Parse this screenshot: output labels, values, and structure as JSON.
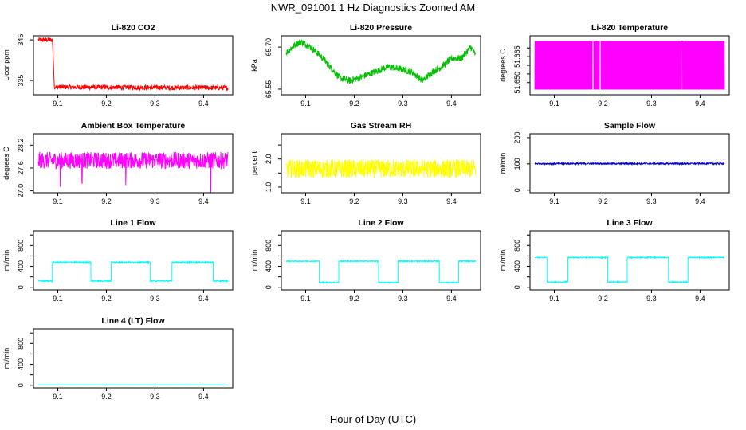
{
  "title": "NWR_091001  1 Hz Diagnostics Zoomed AM",
  "xlabel": "Hour of Day (UTC)",
  "chart_data": [
    {
      "type": "line",
      "title": "Li-820 CO2",
      "ylabel": "Licor ppm",
      "color": "#ff0000",
      "xlim": [
        9.05,
        9.46
      ],
      "ylim": [
        331.5,
        346.0
      ],
      "yticks": [
        335,
        345
      ],
      "ytick_labels": [
        "335",
        "345"
      ],
      "xticks": [
        9.1,
        9.2,
        9.3,
        9.4
      ],
      "xtick_labels": [
        "9.1",
        "9.2",
        "9.3",
        "9.4"
      ],
      "x_range": [
        9.06,
        9.45
      ],
      "segments": [
        {
          "x": [
            9.06,
            9.089
          ],
          "y": [
            345.0,
            345.0
          ],
          "noise": 0.6
        },
        {
          "x": [
            9.089,
            9.093
          ],
          "y": [
            345.0,
            333.6
          ],
          "noise": 0.2
        },
        {
          "x": [
            9.093,
            9.45
          ],
          "y": [
            333.4,
            333.2
          ],
          "noise": 0.6
        }
      ]
    },
    {
      "type": "line",
      "title": "Li-820 Pressure",
      "ylabel": "kPa",
      "color": "#00c000",
      "xlim": [
        9.05,
        9.46
      ],
      "ylim": [
        65.53,
        65.74
      ],
      "yticks": [
        65.55,
        65.7
      ],
      "ytick_labels": [
        "65.55",
        "65.70"
      ],
      "xticks": [
        9.1,
        9.2,
        9.3,
        9.4
      ],
      "xtick_labels": [
        "9.1",
        "9.2",
        "9.3",
        "9.4"
      ],
      "x_range": [
        9.06,
        9.45
      ],
      "anchors": {
        "x": [
          9.06,
          9.08,
          9.09,
          9.11,
          9.13,
          9.15,
          9.17,
          9.19,
          9.21,
          9.24,
          9.27,
          9.3,
          9.32,
          9.34,
          9.36,
          9.38,
          9.4,
          9.42,
          9.44,
          9.45
        ],
        "y": [
          65.68,
          65.71,
          65.72,
          65.7,
          65.67,
          65.63,
          65.59,
          65.58,
          65.59,
          65.61,
          65.63,
          65.62,
          65.61,
          65.58,
          65.61,
          65.63,
          65.66,
          65.66,
          65.7,
          65.67
        ]
      },
      "noise": 0.012
    },
    {
      "type": "line",
      "title": "Li-820 Temperature",
      "ylabel": "degrees C",
      "color": "#ff00ff",
      "xlim": [
        9.05,
        9.46
      ],
      "ylim": [
        51.643,
        51.677
      ],
      "yticks": [
        51.65,
        51.655,
        51.66,
        51.665,
        51.67
      ],
      "ytick_labels": [
        "51.650",
        "",
        "",
        "51.665",
        ""
      ],
      "xticks": [
        9.1,
        9.2,
        9.3,
        9.4
      ],
      "xtick_labels": [
        "9.1",
        "9.2",
        "9.3",
        "9.4"
      ],
      "x_range": [
        9.06,
        9.45
      ],
      "oscillating_between": [
        51.646,
        51.674
      ],
      "gaps": [
        [
          9.178,
          9.181
        ],
        [
          9.193,
          9.196
        ],
        [
          9.362,
          9.364
        ]
      ]
    },
    {
      "type": "line",
      "title": "Ambient Box Temperature",
      "ylabel": "degrees C",
      "color": "#ff00ff",
      "xlim": [
        9.05,
        9.46
      ],
      "ylim": [
        26.95,
        28.5
      ],
      "yticks": [
        27.0,
        27.6,
        28.2
      ],
      "ytick_labels": [
        "27.0",
        "27.6",
        "28.2"
      ],
      "xticks": [
        9.1,
        9.2,
        9.3,
        9.4
      ],
      "xtick_labels": [
        "9.1",
        "9.2",
        "9.3",
        "9.4"
      ],
      "x_range": [
        9.06,
        9.45
      ],
      "baseline": 27.8,
      "noise": 0.22,
      "spikes_low": [
        [
          9.105,
          27.1
        ],
        [
          9.15,
          27.2
        ],
        [
          9.24,
          27.15
        ],
        [
          9.415,
          26.95
        ]
      ]
    },
    {
      "type": "line",
      "title": "Gas Stream RH",
      "ylabel": "percent",
      "color": "#ffff00",
      "xlim": [
        9.05,
        9.46
      ],
      "ylim": [
        0.8,
        2.9
      ],
      "yticks": [
        1.0,
        1.5,
        2.0,
        2.5
      ],
      "ytick_labels": [
        "1.0",
        "",
        "2.0",
        ""
      ],
      "xticks": [
        9.1,
        9.2,
        9.3,
        9.4
      ],
      "xtick_labels": [
        "9.1",
        "9.2",
        "9.3",
        "9.4"
      ],
      "x_range": [
        9.06,
        9.45
      ],
      "baseline": 1.65,
      "noise": 0.33
    },
    {
      "type": "line",
      "title": "Sample Flow",
      "ylabel": "ml/min",
      "color": "#0000cd",
      "xlim": [
        9.05,
        9.46
      ],
      "ylim": [
        -10,
        215
      ],
      "yticks": [
        0,
        100,
        200
      ],
      "ytick_labels": [
        "0",
        "100",
        "200"
      ],
      "xticks": [
        9.1,
        9.2,
        9.3,
        9.4
      ],
      "xtick_labels": [
        "9.1",
        "9.2",
        "9.3",
        "9.4"
      ],
      "x_range": [
        9.06,
        9.45
      ],
      "baseline": 101,
      "noise": 3
    },
    {
      "type": "line",
      "title": "Line 1 Flow",
      "ylabel": "ml/min",
      "color": "#00ffff",
      "xlim": [
        9.05,
        9.46
      ],
      "ylim": [
        -50,
        1080
      ],
      "yticks": [
        0,
        200,
        400,
        600,
        800,
        1000
      ],
      "ytick_labels": [
        "0",
        "",
        "400",
        "",
        "800",
        ""
      ],
      "xticks": [
        9.1,
        9.2,
        9.3,
        9.4
      ],
      "xtick_labels": [
        "9.1",
        "9.2",
        "9.3",
        "9.4"
      ],
      "x_range": [
        9.06,
        9.45
      ],
      "levels": {
        "low": 120,
        "high": 480,
        "noise": 10
      },
      "steps": [
        {
          "start": 9.06,
          "end": 9.089,
          "state": "low"
        },
        {
          "start": 9.089,
          "end": 9.168,
          "state": "high"
        },
        {
          "start": 9.168,
          "end": 9.21,
          "state": "low"
        },
        {
          "start": 9.21,
          "end": 9.29,
          "state": "high"
        },
        {
          "start": 9.29,
          "end": 9.335,
          "state": "low"
        },
        {
          "start": 9.335,
          "end": 9.42,
          "state": "high"
        },
        {
          "start": 9.42,
          "end": 9.45,
          "state": "low"
        }
      ]
    },
    {
      "type": "line",
      "title": "Line 2 Flow",
      "ylabel": "ml/min",
      "color": "#00ffff",
      "xlim": [
        9.05,
        9.46
      ],
      "ylim": [
        -50,
        1080
      ],
      "yticks": [
        0,
        200,
        400,
        600,
        800,
        1000
      ],
      "ytick_labels": [
        "0",
        "",
        "400",
        "",
        "800",
        ""
      ],
      "xticks": [
        9.1,
        9.2,
        9.3,
        9.4
      ],
      "xtick_labels": [
        "9.1",
        "9.2",
        "9.3",
        "9.4"
      ],
      "x_range": [
        9.06,
        9.45
      ],
      "levels": {
        "low": 90,
        "high": 500,
        "noise": 10
      },
      "steps": [
        {
          "start": 9.06,
          "end": 9.128,
          "state": "high"
        },
        {
          "start": 9.128,
          "end": 9.168,
          "state": "low"
        },
        {
          "start": 9.168,
          "end": 9.25,
          "state": "high"
        },
        {
          "start": 9.25,
          "end": 9.29,
          "state": "low"
        },
        {
          "start": 9.29,
          "end": 9.375,
          "state": "high"
        },
        {
          "start": 9.375,
          "end": 9.415,
          "state": "low"
        },
        {
          "start": 9.415,
          "end": 9.45,
          "state": "high"
        }
      ]
    },
    {
      "type": "line",
      "title": "Line 3 Flow",
      "ylabel": "ml/min",
      "color": "#00ffff",
      "xlim": [
        9.05,
        9.46
      ],
      "ylim": [
        -50,
        1080
      ],
      "yticks": [
        0,
        200,
        400,
        600,
        800,
        1000
      ],
      "ytick_labels": [
        "0",
        "",
        "400",
        "",
        "800",
        ""
      ],
      "xticks": [
        9.1,
        9.2,
        9.3,
        9.4
      ],
      "xtick_labels": [
        "9.1",
        "9.2",
        "9.3",
        "9.4"
      ],
      "x_range": [
        9.06,
        9.45
      ],
      "levels": {
        "low": 100,
        "high": 570,
        "noise": 10
      },
      "steps": [
        {
          "start": 9.06,
          "end": 9.085,
          "state": "high"
        },
        {
          "start": 9.085,
          "end": 9.128,
          "state": "low"
        },
        {
          "start": 9.128,
          "end": 9.21,
          "state": "high"
        },
        {
          "start": 9.21,
          "end": 9.25,
          "state": "low"
        },
        {
          "start": 9.25,
          "end": 9.335,
          "state": "high"
        },
        {
          "start": 9.335,
          "end": 9.375,
          "state": "low"
        },
        {
          "start": 9.375,
          "end": 9.45,
          "state": "high"
        }
      ]
    },
    {
      "type": "line",
      "title": "Line 4 (LT) Flow",
      "ylabel": "ml/min",
      "color": "#00ffff",
      "xlim": [
        9.05,
        9.46
      ],
      "ylim": [
        -50,
        1080
      ],
      "yticks": [
        0,
        200,
        400,
        600,
        800,
        1000
      ],
      "ytick_labels": [
        "0",
        "",
        "400",
        "",
        "800",
        ""
      ],
      "xticks": [
        9.1,
        9.2,
        9.3,
        9.4
      ],
      "xtick_labels": [
        "9.1",
        "9.2",
        "9.3",
        "9.4"
      ],
      "x_range": [
        9.06,
        9.45
      ],
      "baseline": 5,
      "noise": 2
    }
  ]
}
